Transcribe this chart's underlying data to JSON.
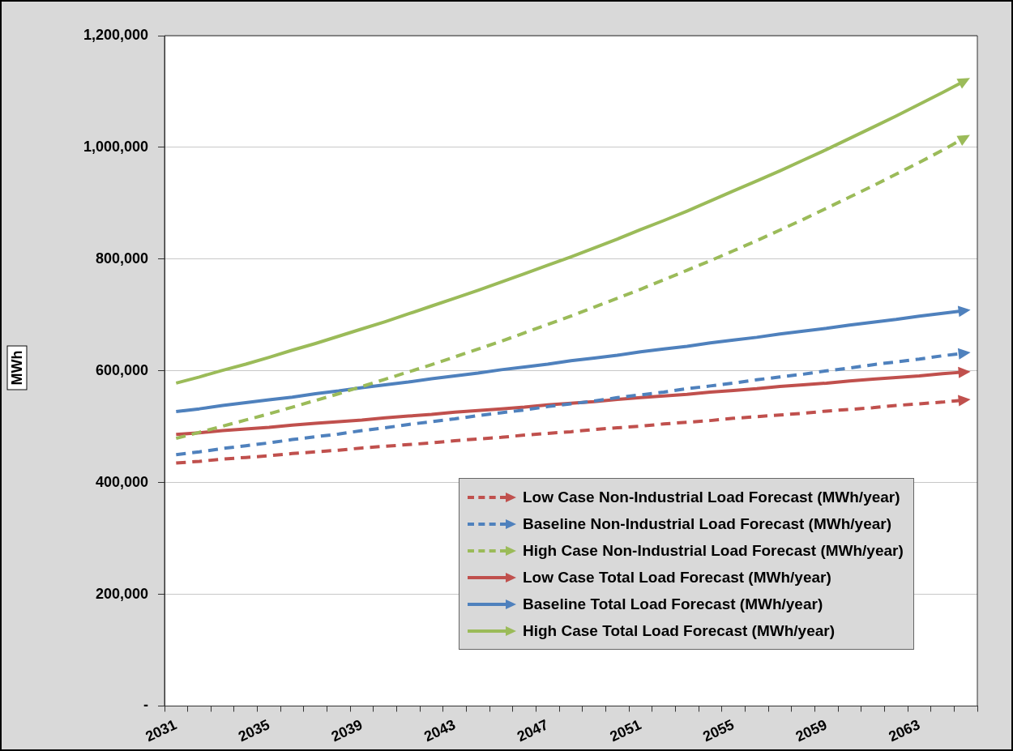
{
  "chart_data": {
    "type": "line",
    "ylabel": "MWh",
    "categories": [
      "2031",
      null,
      null,
      null,
      "2035",
      null,
      null,
      null,
      "2039",
      null,
      null,
      null,
      "2043",
      null,
      null,
      null,
      "2047",
      null,
      null,
      null,
      "2051",
      null,
      null,
      null,
      "2055",
      null,
      null,
      null,
      "2059",
      null,
      null,
      null,
      "2063",
      null,
      null
    ],
    "series": [
      {
        "name": "Low Case Non-Industrial Load Forecast (MWh/year)",
        "color": "#c0504d",
        "line_style": "dashed",
        "values": [
          435000,
          438000,
          442000,
          445000,
          448000,
          452000,
          455000,
          458000,
          462000,
          465000,
          468000,
          471000,
          475000,
          478000,
          481000,
          485000,
          488000,
          491000,
          495000,
          498000,
          501000,
          505000,
          508000,
          511000,
          515000,
          518000,
          521000,
          524000,
          528000,
          531000,
          534000,
          538000,
          541000,
          544000,
          548000
        ]
      },
      {
        "name": "Baseline Non-Industrial Load Forecast (MWh/year)",
        "color": "#4f81bd",
        "line_style": "dashed",
        "values": [
          450000,
          455000,
          461000,
          466000,
          471000,
          477000,
          482000,
          487000,
          493000,
          498000,
          504000,
          509000,
          514000,
          520000,
          525000,
          530000,
          536000,
          541000,
          546000,
          552000,
          557000,
          562000,
          568000,
          573000,
          578000,
          584000,
          589000,
          594000,
          600000,
          605000,
          611000,
          616000,
          621000,
          627000,
          632000
        ]
      },
      {
        "name": "High Case Non-Industrial Load Forecast (MWh/year)",
        "color": "#9bbb59",
        "line_style": "dashed",
        "values": [
          479000,
          490000,
          501000,
          512000,
          523000,
          535000,
          547000,
          559000,
          572000,
          585000,
          598000,
          611000,
          625000,
          639000,
          653000,
          668000,
          683000,
          698000,
          714000,
          730000,
          746000,
          763000,
          780000,
          797000,
          815000,
          833000,
          852000,
          871000,
          891000,
          911000,
          931000,
          952000,
          973000,
          995000,
          1018000
        ]
      },
      {
        "name": "Low Case Total Load Forecast (MWh/year)",
        "color": "#c0504d",
        "line_style": "solid",
        "values": [
          486000,
          489000,
          493000,
          496000,
          499000,
          503000,
          506000,
          509000,
          512000,
          516000,
          519000,
          522000,
          526000,
          529000,
          532000,
          535000,
          539000,
          542000,
          545000,
          549000,
          552000,
          555000,
          558000,
          562000,
          565000,
          568000,
          572000,
          575000,
          578000,
          582000,
          585000,
          588000,
          591000,
          595000,
          598000
        ]
      },
      {
        "name": "Baseline Total Load Forecast (MWh/year)",
        "color": "#4f81bd",
        "line_style": "solid",
        "values": [
          527000,
          532000,
          538000,
          543000,
          548000,
          553000,
          559000,
          564000,
          570000,
          575000,
          580000,
          586000,
          591000,
          596000,
          602000,
          607000,
          612000,
          618000,
          623000,
          628000,
          634000,
          639000,
          644000,
          650000,
          655000,
          660000,
          666000,
          671000,
          676000,
          682000,
          687000,
          692000,
          698000,
          703000,
          708000
        ]
      },
      {
        "name": "High Case Total Load Forecast (MWh/year)",
        "color": "#9bbb59",
        "line_style": "solid",
        "values": [
          578000,
          589000,
          601000,
          612000,
          624000,
          637000,
          649000,
          662000,
          675000,
          688000,
          702000,
          716000,
          730000,
          744000,
          759000,
          774000,
          789000,
          804000,
          820000,
          836000,
          853000,
          869000,
          886000,
          904000,
          922000,
          940000,
          958000,
          977000,
          996000,
          1016000,
          1036000,
          1056000,
          1077000,
          1098000,
          1120000
        ]
      }
    ],
    "ylim": [
      0,
      1200000
    ],
    "yticks": [
      {
        "value": 0,
        "label": "-"
      },
      {
        "value": 200000,
        "label": "200,000"
      },
      {
        "value": 400000,
        "label": "400,000"
      },
      {
        "value": 600000,
        "label": "600,000"
      },
      {
        "value": 800000,
        "label": "800,000"
      },
      {
        "value": 1000000,
        "label": "1,000,000"
      },
      {
        "value": 1200000,
        "label": "1,200,000"
      }
    ],
    "grid": "y",
    "legend": "bottom right",
    "marker": "none"
  }
}
